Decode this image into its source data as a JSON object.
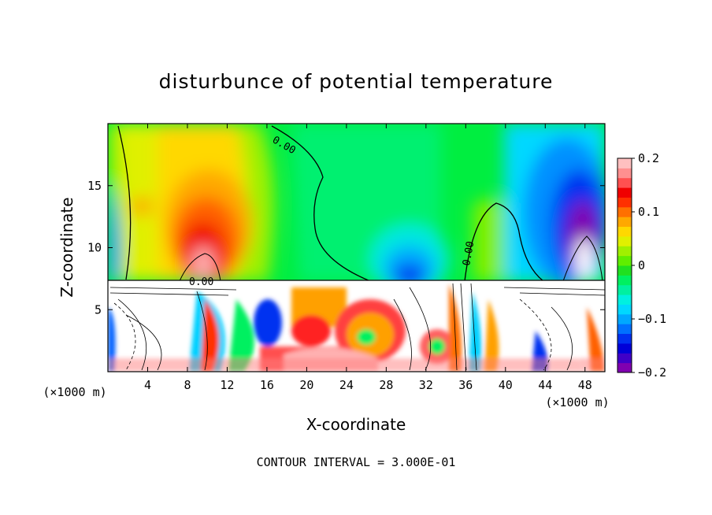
{
  "chart_data": {
    "type": "heatmap",
    "title": "disturbunce of potential temperature",
    "xlabel": "X-coordinate",
    "ylabel": "Z-coordinate",
    "x_unit_left": "(×1000 m)",
    "x_unit_right": "(×1000 m)",
    "xlim": [
      0,
      50
    ],
    "ylim": [
      0,
      20
    ],
    "x_ticks": [
      4,
      8,
      12,
      16,
      20,
      24,
      28,
      32,
      36,
      40,
      44,
      48
    ],
    "y_ticks": [
      5,
      10,
      15
    ],
    "colorbar": {
      "range": [
        -0.2,
        0.2
      ],
      "ticks": [
        {
          "value": 0.2,
          "label": "0.2"
        },
        {
          "value": 0.1,
          "label": "0.1"
        },
        {
          "value": 0,
          "label": "0"
        },
        {
          "value": -0.1,
          "label": "−0.1"
        },
        {
          "value": -0.2,
          "label": "−0.2"
        }
      ],
      "colors": [
        "#8000b0",
        "#4000c8",
        "#0000d8",
        "#0030f0",
        "#0070ff",
        "#00a8ff",
        "#00d8ff",
        "#00f0e0",
        "#00f0a0",
        "#00f060",
        "#20e020",
        "#60ee00",
        "#a0f000",
        "#e0f000",
        "#ffd800",
        "#ffa800",
        "#ff7000",
        "#ff3000",
        "#f00000",
        "#ff5050",
        "#ff9090",
        "#ffc0c0"
      ]
    },
    "contour_labels": [
      "0.00",
      "0.00",
      "0.00"
    ],
    "contour_interval_text": "CONTOUR INTERVAL = 3.000E-01"
  }
}
